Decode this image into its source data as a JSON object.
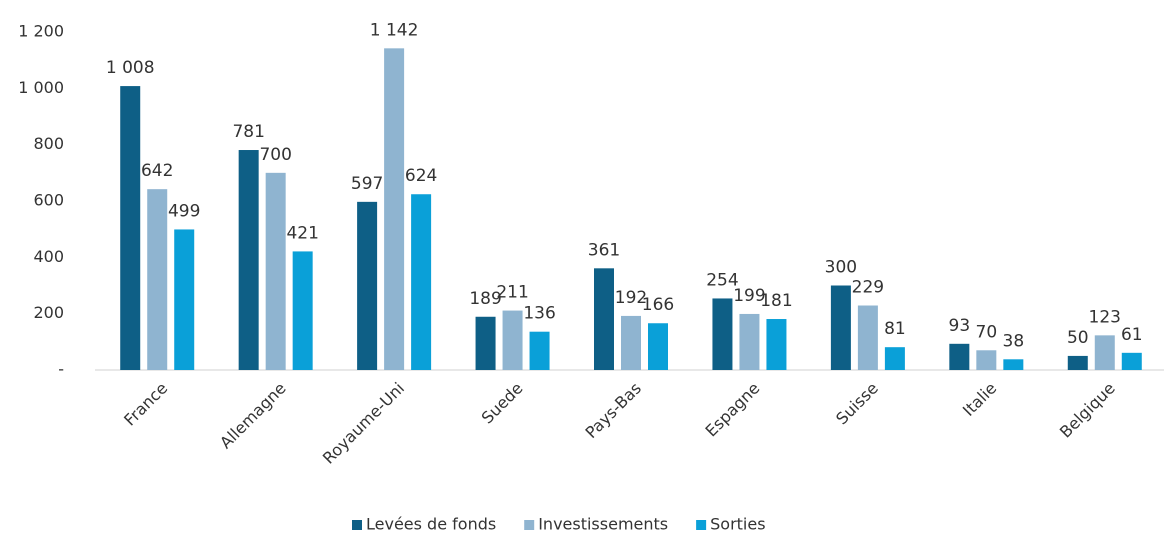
{
  "chart_data": {
    "type": "bar",
    "categories": [
      "France",
      "Allemagne",
      "Royaume-Uni",
      "Suede",
      "Pays-Bas",
      "Espagne",
      "Suisse",
      "Italie",
      "Belgique"
    ],
    "series": [
      {
        "name": "Levées de fonds",
        "color": "#0e5f86",
        "values": [
          1008,
          781,
          597,
          189,
          361,
          254,
          300,
          93,
          50
        ],
        "value_labels": [
          "1 008",
          "781",
          "597",
          "189",
          "361",
          "254",
          "300",
          "93",
          "50"
        ]
      },
      {
        "name": "Investissements",
        "color": "#8fb4d0",
        "values": [
          642,
          700,
          1142,
          211,
          192,
          199,
          229,
          70,
          123
        ],
        "value_labels": [
          "642",
          "700",
          "1 142",
          "211",
          "192",
          "199",
          "229",
          "70",
          "123"
        ]
      },
      {
        "name": "Sorties",
        "color": "#0aa0d8",
        "values": [
          499,
          421,
          624,
          136,
          166,
          181,
          81,
          38,
          61
        ],
        "value_labels": [
          "499",
          "421",
          "624",
          "136",
          "166",
          "181",
          "81",
          "38",
          "61"
        ]
      }
    ],
    "ylim": [
      0,
      1200
    ],
    "yticks": [
      {
        "value": 0,
        "label": "-"
      },
      200,
      400,
      600,
      800,
      {
        "value": 1000,
        "label": "1 000"
      },
      {
        "value": 1200,
        "label": "1 200"
      }
    ],
    "grid": false,
    "legend": "bottom"
  }
}
